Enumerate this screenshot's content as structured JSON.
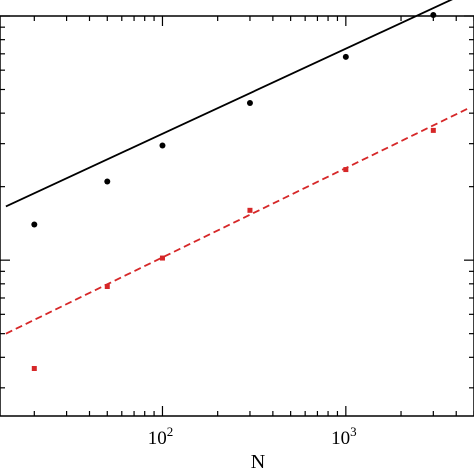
{
  "chart_data": {
    "type": "scatter",
    "title": "",
    "xlabel": "N",
    "ylabel": "",
    "x_scale": "log",
    "y_scale": "log",
    "xlim": [
      13,
      5000
    ],
    "ylim": [
      0.23,
      10
    ],
    "x_ticks": [
      {
        "value": 100,
        "base": "10",
        "exp": "2"
      },
      {
        "value": 1000,
        "base": "10",
        "exp": "3"
      }
    ],
    "grid": false,
    "legend": "none",
    "series": [
      {
        "color": "#000000",
        "marker": "circle",
        "points": [
          {
            "x": 20,
            "y": 1.4
          },
          {
            "x": 50,
            "y": 2.1
          },
          {
            "x": 100,
            "y": 2.95
          },
          {
            "x": 300,
            "y": 4.4
          },
          {
            "x": 1000,
            "y": 6.8
          },
          {
            "x": 3000,
            "y": 10.1
          }
        ],
        "fit": {
          "style": "solid",
          "x": [
            14,
            4700
          ],
          "y": [
            1.66,
            12.6
          ]
        }
      },
      {
        "color": "#d62728",
        "marker": "square",
        "points": [
          {
            "x": 20,
            "y": 0.36
          },
          {
            "x": 50,
            "y": 0.78
          },
          {
            "x": 100,
            "y": 1.02
          },
          {
            "x": 300,
            "y": 1.6
          },
          {
            "x": 1000,
            "y": 2.35
          },
          {
            "x": 3000,
            "y": 3.4
          }
        ],
        "fit": {
          "style": "dashed",
          "x": [
            14,
            4700
          ],
          "y": [
            0.5,
            4.2
          ]
        }
      }
    ]
  }
}
